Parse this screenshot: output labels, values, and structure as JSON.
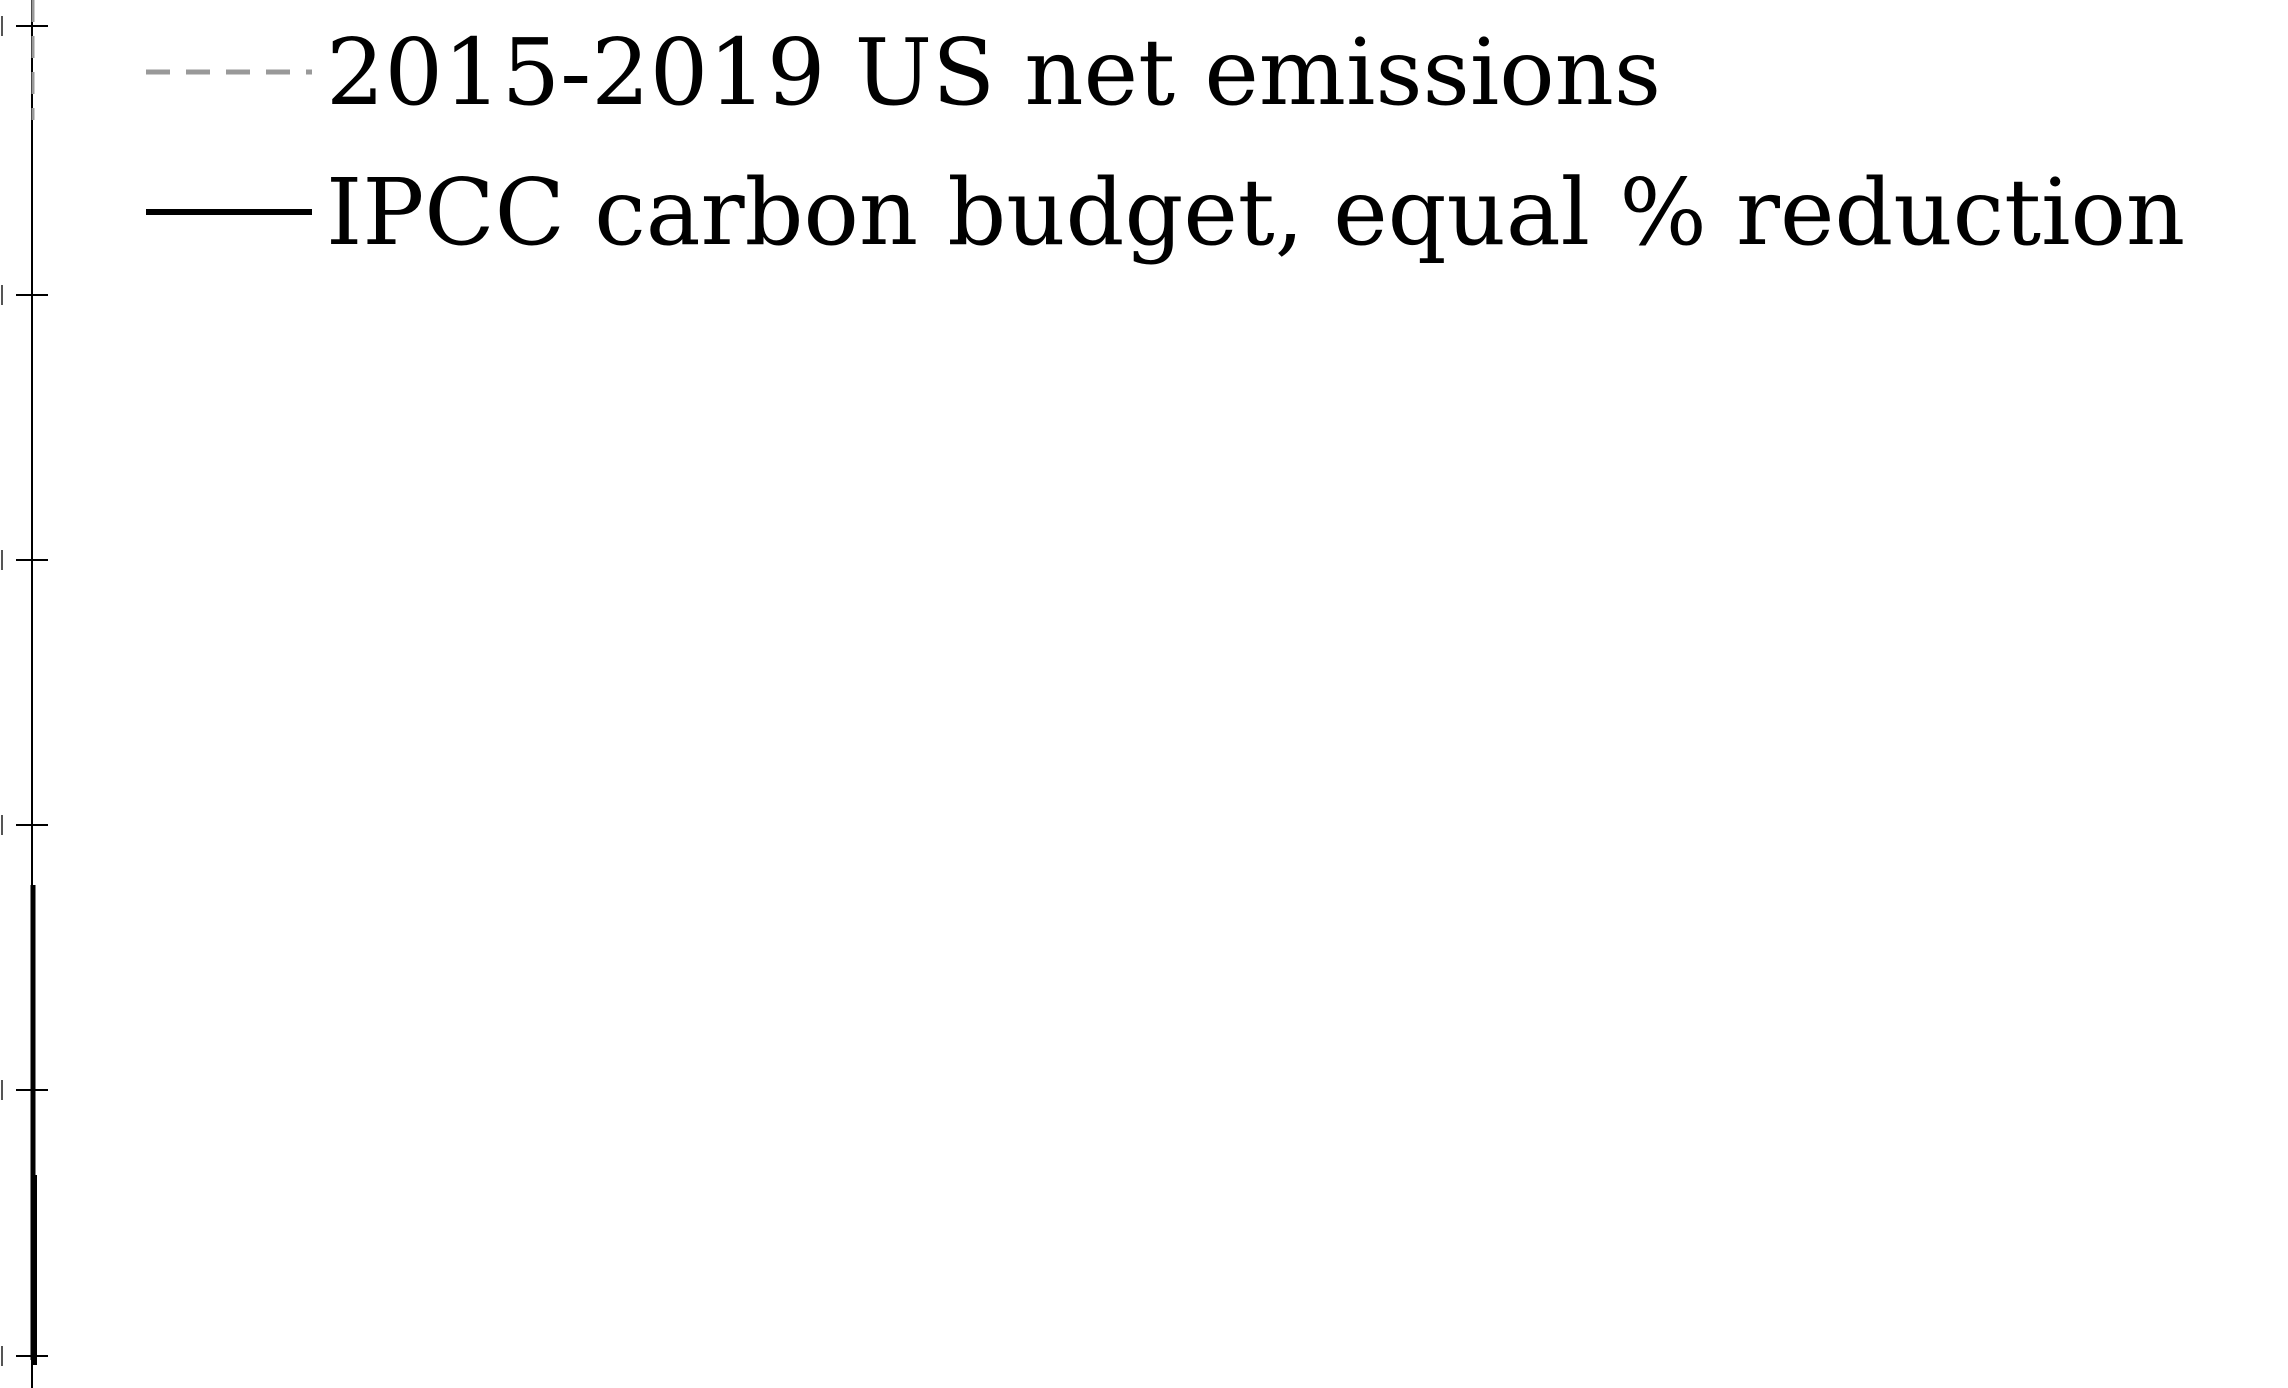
{
  "chart_data": {
    "type": "line",
    "title": "",
    "xlabel": "",
    "ylabel": "",
    "grid": false,
    "legend_placement": "top-left",
    "series": [
      {
        "name": "2015-2019 US net emissions",
        "style": "dashed",
        "color": "#999999"
      },
      {
        "name": "IPCC carbon budget, equal % reduction",
        "style": "solid",
        "color": "#000000"
      }
    ]
  }
}
